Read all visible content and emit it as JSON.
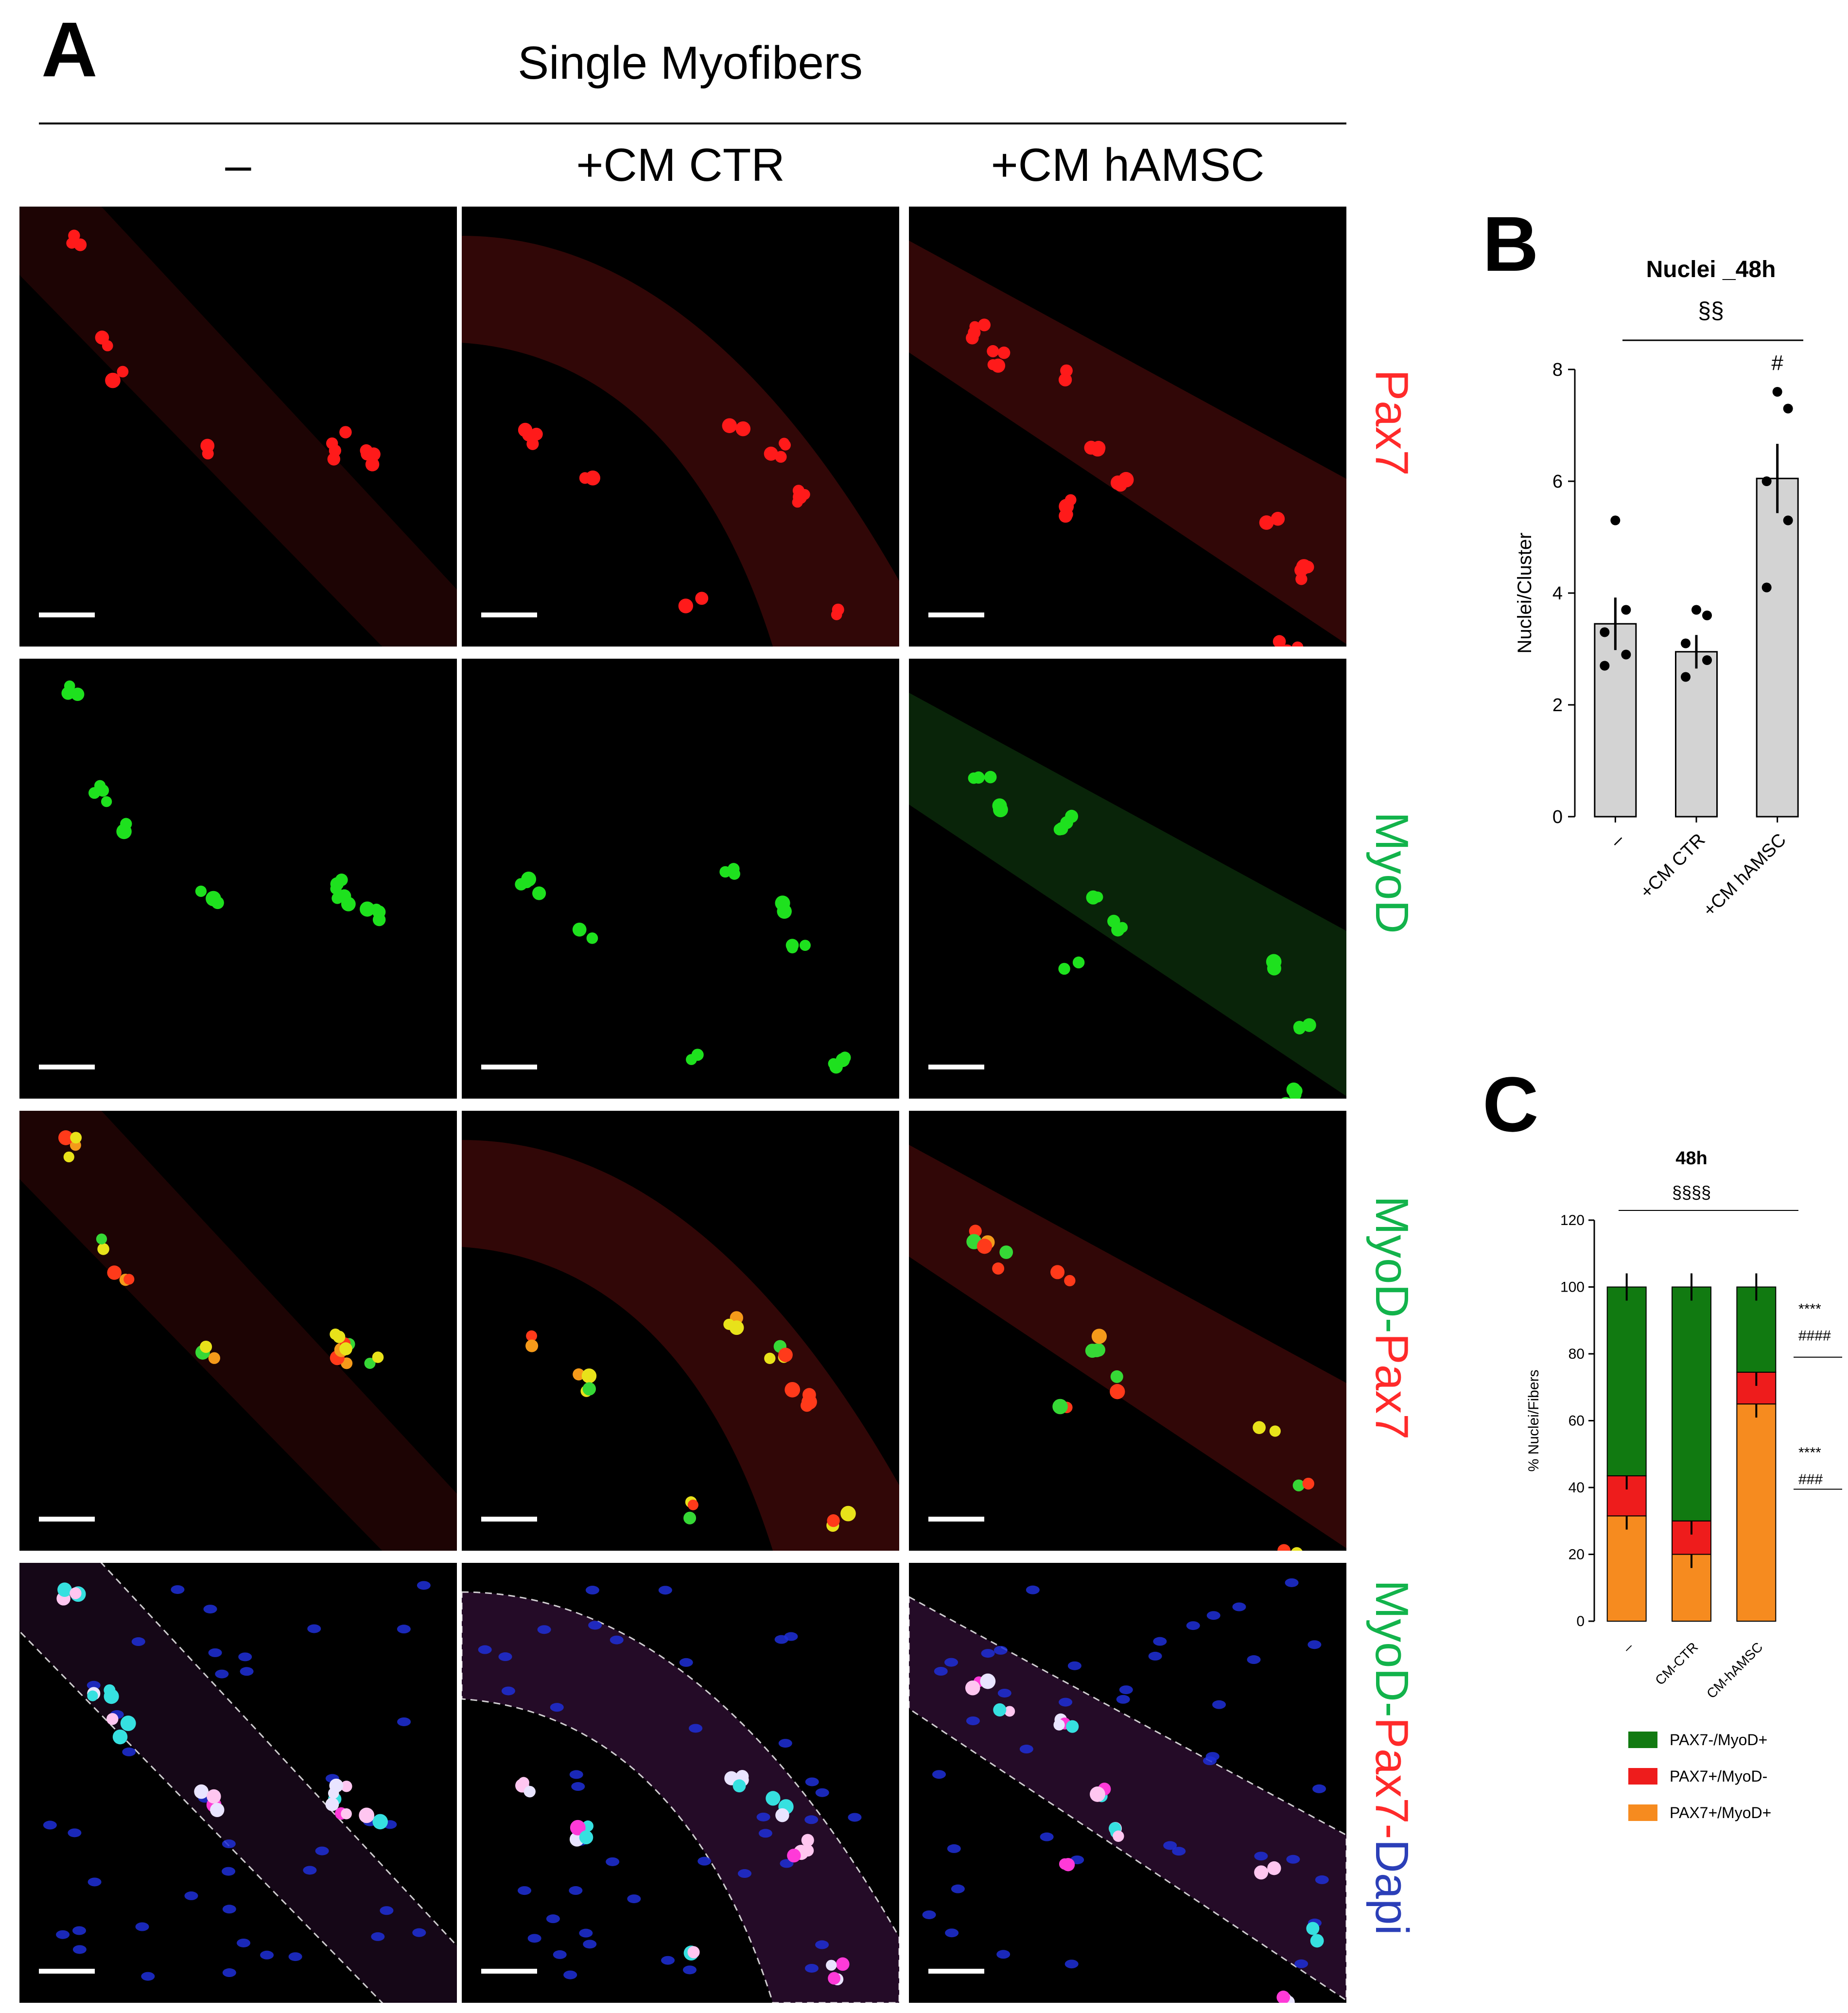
{
  "panel_a": {
    "letter": "A",
    "title": "Single Myofibers",
    "columns": [
      "–",
      "+CM CTR",
      "+CM hAMSC"
    ],
    "rows": [
      {
        "parts": [
          {
            "text": "Pax7",
            "color": "#ff2a2a"
          }
        ]
      },
      {
        "parts": [
          {
            "text": "MyoD",
            "color": "#12b34b"
          }
        ]
      },
      {
        "parts": [
          {
            "text": "MyoD",
            "color": "#12b34b"
          },
          {
            "text": "-",
            "color": "#12b34b"
          },
          {
            "text": "Pax7",
            "color": "#ff2a2a"
          }
        ]
      },
      {
        "parts": [
          {
            "text": "MyoD",
            "color": "#12b34b"
          },
          {
            "text": "-",
            "color": "#12b34b"
          },
          {
            "text": "Pax7",
            "color": "#ff2a2a"
          },
          {
            "text": "-",
            "color": "#ff2a2a"
          },
          {
            "text": "Dapi",
            "color": "#2b3fb8"
          }
        ]
      }
    ]
  },
  "panel_b": {
    "letter": "B",
    "chart_data": {
      "type": "bar",
      "title": "Nuclei _48h",
      "significance_top": "§§",
      "categories": [
        "–",
        "+CM CTR",
        "+CM hAMSC"
      ],
      "values": [
        3.45,
        2.95,
        6.05
      ],
      "errors": [
        0.47,
        0.3,
        0.62
      ],
      "points": [
        [
          5.3,
          3.7,
          3.3,
          2.9,
          2.7
        ],
        [
          3.7,
          3.6,
          3.1,
          2.8,
          2.5
        ],
        [
          7.6,
          7.3,
          6.0,
          5.3,
          4.1
        ]
      ],
      "annotations": [
        "",
        "",
        "#"
      ],
      "ylabel": "Nuclei/Cluster",
      "ylim": [
        0,
        8
      ],
      "yticks": [
        0,
        2,
        4,
        6,
        8
      ],
      "bar_color": "#d3d3d3"
    }
  },
  "panel_c": {
    "letter": "C",
    "chart_data": {
      "type": "bar",
      "stacked": true,
      "title": "48h",
      "significance_top": "§§§§",
      "categories": [
        "–",
        "CM-CTR",
        "CM-hAMSC"
      ],
      "series": [
        {
          "name": "PAX7+/MyoD+",
          "values": [
            31.5,
            20,
            65
          ],
          "color": "#f68b1f"
        },
        {
          "name": "PAX7+/MyoD-",
          "values": [
            12,
            10,
            9.5
          ],
          "color": "#ee1c1c"
        },
        {
          "name": "PAX7-/MyoD+",
          "values": [
            56.5,
            70,
            25.5
          ],
          "color": "#117a11"
        }
      ],
      "legend_order": [
        "PAX7-/MyoD+",
        "PAX7+/MyoD-",
        "PAX7+/MyoD+"
      ],
      "legend_position": "bottom",
      "annotations_right": [
        {
          "lines": [
            "****",
            "####"
          ]
        },
        {
          "lines": [
            "****",
            "###"
          ]
        }
      ],
      "ylabel": "% Nuclei/Fibers",
      "ylim": [
        0,
        120
      ],
      "yticks": [
        0,
        20,
        40,
        60,
        80,
        100,
        120
      ]
    }
  }
}
